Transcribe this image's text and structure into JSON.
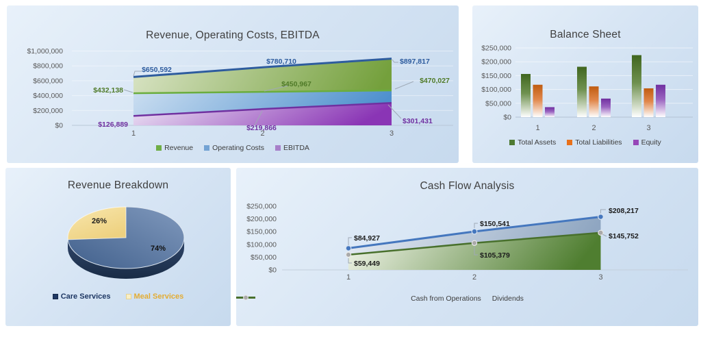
{
  "page": {
    "background": "#ffffff",
    "panel_color_light": "#e8f1fa",
    "panel_color_dark": "#c7daee"
  },
  "chart_data": [
    {
      "id": "revenue",
      "type": "area",
      "title": "Revenue, Operating Costs, EBITDA",
      "categories": [
        "1",
        "2",
        "3"
      ],
      "series": [
        {
          "name": "Revenue",
          "values": [
            650592,
            780710,
            897817
          ],
          "line_color": "#2e5c9e",
          "label_color": "#2e5c9e",
          "fill_from": "#dae4c6",
          "fill_to": "#74a03c",
          "legend_color": "#6fae46"
        },
        {
          "name": "Operating Costs",
          "values": [
            432138,
            450967,
            470027
          ],
          "line_color": "#6aad3d",
          "label_color": "#4f7a28",
          "fill_from": "#cbdef1",
          "fill_to": "#4e90cd",
          "legend_color": "#74a3d4"
        },
        {
          "name": "EBITDA",
          "values": [
            126889,
            219866,
            301431
          ],
          "line_color": "#7030a0",
          "label_color": "#7030a0",
          "fill_from": "#ede5f5",
          "fill_to": "#8a35b5",
          "legend_color": "#a77fc9"
        }
      ],
      "ylim": [
        0,
        1000000
      ],
      "ytick_step": 200000,
      "yticks": [
        "$1,000,000",
        "$800,000",
        "$600,000",
        "$400,000",
        "$200,000",
        "$0"
      ],
      "grid": true,
      "legend_position": "bottom"
    },
    {
      "id": "balance",
      "type": "bar",
      "title": "Balance Sheet",
      "categories": [
        "1",
        "2",
        "3"
      ],
      "series": [
        {
          "name": "Total Assets",
          "values": [
            156000,
            182000,
            224000
          ],
          "color_top": "#40661f",
          "color_mid": "#6f9150",
          "legend_color": "#4e7a33"
        },
        {
          "name": "Total Liabilities",
          "values": [
            117000,
            111000,
            104000
          ],
          "color_top": "#c05c10",
          "color_mid": "#e0864a",
          "legend_color": "#e8711a"
        },
        {
          "name": "Equity",
          "values": [
            36000,
            67000,
            117000
          ],
          "color_top": "#7030a0",
          "color_mid": "#9a64c0",
          "legend_color": "#9647b8"
        }
      ],
      "ylim": [
        0,
        250000
      ],
      "ytick_step": 50000,
      "yticks": [
        "$250,000",
        "$200,000",
        "$150,000",
        "$100,000",
        "$50,000",
        "$0"
      ],
      "grid": true,
      "legend_position": "bottom"
    },
    {
      "id": "pie",
      "type": "pie",
      "title": "Revenue Breakdown",
      "slices": [
        {
          "label": "Care Services",
          "pct": 74,
          "color": "#4a6891",
          "legend_text_color": "#1f3864",
          "legend_marker_color": "#1f3864",
          "legend_marker_border": "#16294a"
        },
        {
          "label": "Meal Services",
          "pct": 26,
          "color": "#f3dc96",
          "legend_text_color": "#e3ac33",
          "legend_marker_color": "#f9efc5",
          "legend_marker_border": "#e5d291"
        }
      ],
      "labels": [
        "74%",
        "26%"
      ],
      "legend_position": "bottom"
    },
    {
      "id": "cashflow",
      "type": "line",
      "title": "Cash Flow Analysis",
      "categories": [
        "1",
        "2",
        "3"
      ],
      "series": [
        {
          "name": "Cash from Operations",
          "values": [
            84927,
            150541,
            208217
          ],
          "line_color": "#4577be",
          "marker_fill": "#4577be"
        },
        {
          "name": "Dividends",
          "values": [
            59449,
            105379,
            145752
          ],
          "line_color": "#48702c",
          "marker_fill": "#a9a9a9"
        }
      ],
      "ylim": [
        0,
        250000
      ],
      "ytick_step": 50000,
      "yticks": [
        "$250,000",
        "$200,000",
        "$150,000",
        "$100,000",
        "$50,000",
        "$0"
      ],
      "area_between_from": "#e9eef5",
      "area_between_to": "#8fa6c1",
      "area_under_from": "#f4f7ed",
      "area_under_to": "#4f7e30",
      "grid": false,
      "legend_position": "bottom"
    }
  ]
}
